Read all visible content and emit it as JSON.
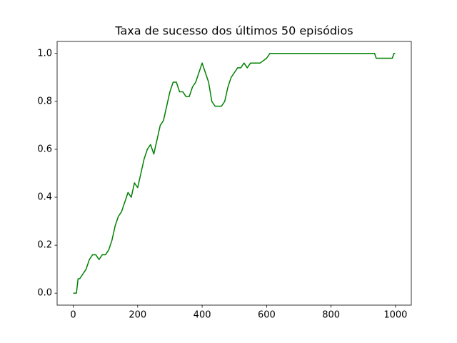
{
  "chart_data": {
    "type": "line",
    "title": "Taxa de sucesso dos últimos 50 episódios",
    "x": [
      0,
      10,
      15,
      20,
      30,
      40,
      50,
      60,
      70,
      80,
      90,
      100,
      110,
      120,
      130,
      140,
      150,
      160,
      170,
      180,
      190,
      200,
      210,
      220,
      230,
      240,
      250,
      260,
      270,
      280,
      290,
      300,
      310,
      320,
      330,
      340,
      350,
      360,
      370,
      380,
      390,
      400,
      410,
      420,
      430,
      440,
      450,
      460,
      470,
      480,
      490,
      500,
      510,
      520,
      530,
      540,
      550,
      560,
      570,
      580,
      600,
      610,
      700,
      800,
      900,
      935,
      940,
      980,
      990,
      995,
      999
    ],
    "series": [
      {
        "color": "#008000",
        "values": [
          0,
          0,
          0.06,
          0.06,
          0.08,
          0.1,
          0.14,
          0.16,
          0.16,
          0.14,
          0.16,
          0.16,
          0.18,
          0.22,
          0.28,
          0.32,
          0.34,
          0.38,
          0.42,
          0.4,
          0.46,
          0.44,
          0.5,
          0.56,
          0.6,
          0.62,
          0.58,
          0.64,
          0.7,
          0.72,
          0.78,
          0.84,
          0.88,
          0.88,
          0.84,
          0.84,
          0.82,
          0.82,
          0.86,
          0.88,
          0.92,
          0.96,
          0.92,
          0.88,
          0.8,
          0.78,
          0.78,
          0.78,
          0.8,
          0.86,
          0.9,
          0.92,
          0.94,
          0.94,
          0.96,
          0.94,
          0.96,
          0.96,
          0.96,
          0.96,
          0.98,
          1.0,
          1.0,
          1.0,
          1.0,
          1.0,
          0.98,
          0.98,
          0.98,
          1.0,
          1.0
        ]
      }
    ],
    "xlim": [
      -49.95,
      1048.95
    ],
    "ylim": [
      -0.05,
      1.05
    ],
    "xticks": [
      0,
      200,
      400,
      600,
      800,
      1000
    ],
    "yticks": [
      {
        "value": 0,
        "label": "0.0"
      },
      0.2,
      0.4,
      0.6,
      0.8,
      {
        "value": 1,
        "label": "1.0"
      }
    ]
  }
}
